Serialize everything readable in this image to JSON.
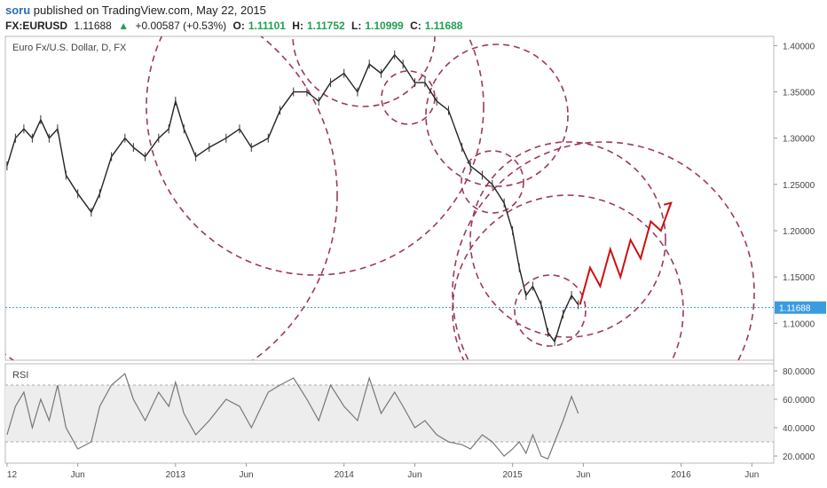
{
  "header": {
    "author": "soru",
    "published_text": "published on TradingView.com, May 22, 2015"
  },
  "quote": {
    "symbol": "FX:EURUSD",
    "last": "1.11688",
    "change": "+0.00587 (+0.53%)",
    "open_label": "O:",
    "open": "1.11101",
    "high_label": "H:",
    "high": "1.11752",
    "low_label": "L:",
    "low": "1.10999",
    "close_label": "C:",
    "close": "1.11688",
    "up_color": "#21a051"
  },
  "chart_data": [
    {
      "type": "line",
      "title": "Euro Fx/U.S. Dollar, D, FX",
      "ylim": [
        1.06,
        1.41
      ],
      "y_ticks": [
        "1.40000",
        "1.35000",
        "1.30000",
        "1.25000",
        "1.20000",
        "1.15000",
        "1.10000"
      ],
      "y_tick_values": [
        1.4,
        1.35,
        1.3,
        1.25,
        1.2,
        1.15,
        1.1
      ],
      "last_price_label": "1.11688",
      "last_price": 1.11688,
      "x_ticks": [
        "12",
        "Jun",
        "2013",
        "Jun",
        "2014",
        "Jun",
        "2015",
        "Jun",
        "2016",
        "Jun"
      ],
      "x_tick_years": [
        2012.0,
        2012.42,
        2013.0,
        2013.42,
        2014.0,
        2014.42,
        2015.0,
        2015.42,
        2016.0,
        2016.42
      ],
      "series": [
        {
          "x": [
            2012.0,
            2012.05,
            2012.1,
            2012.15,
            2012.2,
            2012.25,
            2012.3,
            2012.35,
            2012.42,
            2012.5,
            2012.55,
            2012.62,
            2012.7,
            2012.75,
            2012.82,
            2012.9,
            2012.96,
            2013.0,
            2013.05,
            2013.12,
            2013.2,
            2013.3,
            2013.38,
            2013.45,
            2013.55,
            2013.62,
            2013.7,
            2013.78,
            2013.85,
            2013.92,
            2014.0,
            2014.08,
            2014.15,
            2014.22,
            2014.3,
            2014.35,
            2014.42,
            2014.48,
            2014.55,
            2014.62,
            2014.7,
            2014.75,
            2014.82,
            2014.88,
            2014.95,
            2015.0,
            2015.04,
            2015.08,
            2015.12,
            2015.17,
            2015.21,
            2015.25,
            2015.3,
            2015.35,
            2015.39
          ],
          "values": [
            1.27,
            1.3,
            1.31,
            1.3,
            1.32,
            1.3,
            1.31,
            1.26,
            1.24,
            1.22,
            1.24,
            1.28,
            1.3,
            1.29,
            1.28,
            1.3,
            1.31,
            1.34,
            1.31,
            1.28,
            1.29,
            1.3,
            1.31,
            1.29,
            1.3,
            1.33,
            1.35,
            1.35,
            1.34,
            1.36,
            1.37,
            1.35,
            1.38,
            1.37,
            1.39,
            1.38,
            1.36,
            1.36,
            1.34,
            1.33,
            1.29,
            1.27,
            1.26,
            1.25,
            1.23,
            1.2,
            1.16,
            1.13,
            1.14,
            1.12,
            1.09,
            1.08,
            1.11,
            1.13,
            1.12
          ]
        }
      ],
      "projection": {
        "color": "#cc1111",
        "x": [
          2015.4,
          2015.46,
          2015.52,
          2015.58,
          2015.64,
          2015.7,
          2015.76,
          2015.82,
          2015.88,
          2015.94
        ],
        "values": [
          1.12,
          1.16,
          1.14,
          1.18,
          1.15,
          1.19,
          1.17,
          1.21,
          1.2,
          1.23
        ]
      },
      "circles_color": "#9b3a5a"
    },
    {
      "type": "line",
      "title": "RSI",
      "ylim": [
        15,
        85
      ],
      "y_ticks": [
        "80.0000",
        "60.0000",
        "40.0000",
        "20.0000"
      ],
      "y_tick_values": [
        80,
        60,
        40,
        20
      ],
      "band": [
        30,
        70
      ],
      "series": [
        {
          "x": [
            2012.0,
            2012.05,
            2012.1,
            2012.15,
            2012.2,
            2012.25,
            2012.3,
            2012.35,
            2012.42,
            2012.5,
            2012.55,
            2012.62,
            2012.7,
            2012.75,
            2012.82,
            2012.9,
            2012.96,
            2013.0,
            2013.05,
            2013.12,
            2013.2,
            2013.3,
            2013.38,
            2013.45,
            2013.55,
            2013.62,
            2013.7,
            2013.78,
            2013.85,
            2013.92,
            2014.0,
            2014.08,
            2014.15,
            2014.22,
            2014.3,
            2014.35,
            2014.42,
            2014.48,
            2014.55,
            2014.62,
            2014.7,
            2014.75,
            2014.82,
            2014.88,
            2014.95,
            2015.0,
            2015.04,
            2015.08,
            2015.12,
            2015.17,
            2015.21,
            2015.25,
            2015.3,
            2015.35,
            2015.39
          ],
          "values": [
            35,
            55,
            65,
            40,
            60,
            45,
            70,
            40,
            25,
            30,
            55,
            70,
            78,
            60,
            45,
            65,
            55,
            72,
            50,
            35,
            45,
            60,
            55,
            40,
            65,
            70,
            75,
            60,
            45,
            70,
            55,
            45,
            75,
            50,
            65,
            55,
            40,
            45,
            35,
            30,
            28,
            25,
            35,
            30,
            20,
            25,
            30,
            22,
            35,
            20,
            18,
            30,
            45,
            62,
            50
          ]
        }
      ]
    }
  ]
}
